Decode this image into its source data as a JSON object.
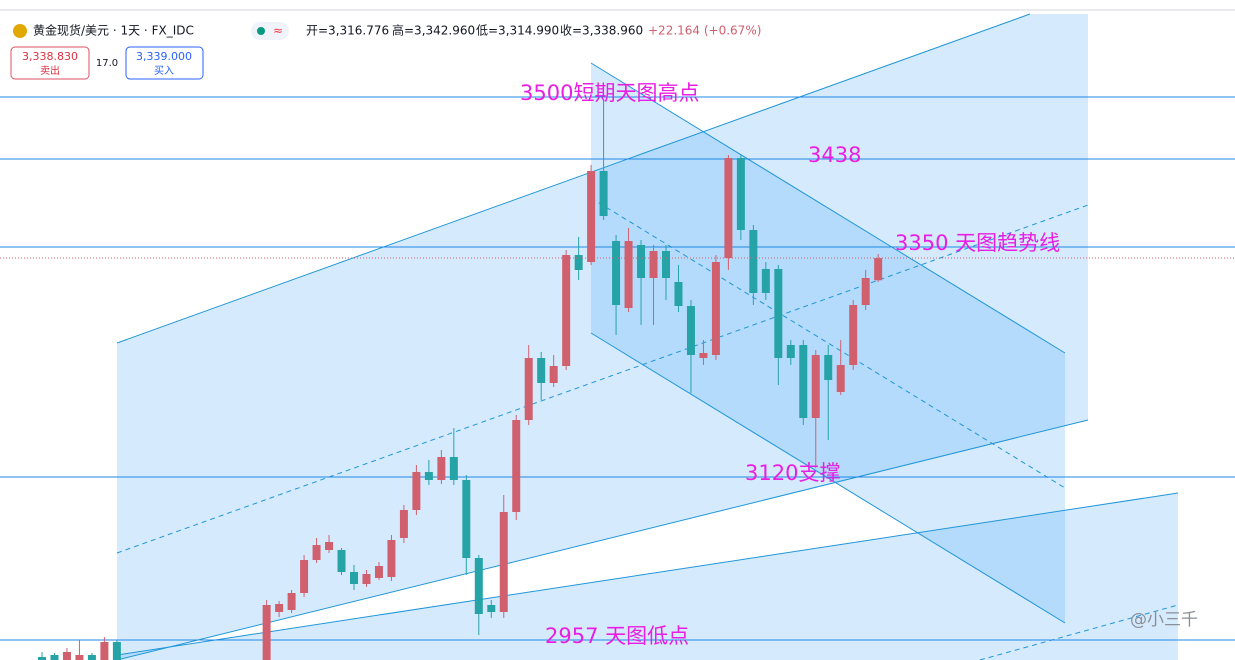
{
  "header": {
    "title": "黄金现货/美元 · 1天 · FX_IDC",
    "open": "开=3,316.776",
    "high": "高=3,342.960",
    "low": "低=3,314.990",
    "close": "收=3,338.960",
    "change": "+22.164 (+0.67%)",
    "sell_price": "3,338.830",
    "sell_label": "卖出",
    "spread": "17.0",
    "buy_price": "3,339.000",
    "buy_label": "买入",
    "watermark": "@小三千"
  },
  "chart_data": {
    "type": "candlestick",
    "ylim": [
      2937,
      3597
    ],
    "up_color": "#d0606e",
    "down_color": "#26a3a6",
    "level_color": "#1e88e5",
    "ohlc": [
      [
        2940,
        2945,
        2937,
        2937
      ],
      [
        2942,
        2944,
        2937,
        2937
      ],
      [
        2937,
        2949,
        2937,
        2945
      ],
      [
        2937,
        2957,
        2937,
        2942
      ],
      [
        2942,
        2944,
        2937,
        2937
      ],
      [
        2937,
        2960,
        2937,
        2955
      ],
      [
        2955,
        2957,
        2937,
        2937
      ],
      null,
      null,
      null,
      null,
      null,
      null,
      null,
      null,
      null,
      null,
      null,
      [
        2937,
        2997,
        2937,
        2992
      ],
      [
        2985,
        2996,
        2980,
        2993
      ],
      [
        2987,
        3007,
        2984,
        3004
      ],
      [
        3004,
        3042,
        3000,
        3037
      ],
      [
        3037,
        3059,
        3034,
        3052
      ],
      [
        3047,
        3062,
        3044,
        3055
      ],
      [
        3047,
        3049,
        3022,
        3025
      ],
      [
        3025,
        3032,
        3007,
        3013
      ],
      [
        3013,
        3027,
        3010,
        3023
      ],
      [
        3019,
        3035,
        3017,
        3031
      ],
      [
        3020,
        3062,
        3016,
        3057
      ],
      [
        3059,
        3092,
        3054,
        3087
      ],
      [
        3087,
        3132,
        3082,
        3125
      ],
      [
        3125,
        3137,
        3112,
        3117
      ],
      [
        3117,
        3147,
        3113,
        3140
      ],
      [
        3140,
        3169,
        3112,
        3117
      ],
      [
        3117,
        3122,
        3022,
        3039
      ],
      [
        3039,
        3042,
        2962,
        2983
      ],
      [
        2992,
        2997,
        2979,
        2985
      ],
      [
        2985,
        3102,
        2979,
        3085
      ],
      [
        3085,
        3182,
        3077,
        3177
      ],
      [
        3177,
        3252,
        3172,
        3239
      ],
      [
        3239,
        3245,
        3197,
        3214
      ],
      [
        3214,
        3242,
        3210,
        3231
      ],
      [
        3231,
        3347,
        3227,
        3342
      ],
      [
        3342,
        3360,
        3317,
        3327
      ],
      [
        3335,
        3432,
        3332,
        3426
      ],
      [
        3426,
        3497,
        3377,
        3381
      ],
      [
        3356,
        3362,
        3262,
        3292
      ],
      [
        3289,
        3369,
        3285,
        3356
      ],
      [
        3352,
        3357,
        3272,
        3319
      ],
      [
        3319,
        3352,
        3272,
        3346
      ],
      [
        3346,
        3352,
        3297,
        3319
      ],
      [
        3315,
        3332,
        3285,
        3291
      ],
      [
        3291,
        3297,
        3204,
        3242
      ],
      [
        3239,
        3257,
        3232,
        3244
      ],
      [
        3242,
        3342,
        3237,
        3335
      ],
      [
        3339,
        3442,
        3327,
        3439
      ],
      [
        3439,
        3442,
        3357,
        3367
      ],
      [
        3367,
        3372,
        3292,
        3304
      ],
      [
        3328,
        3335,
        3297,
        3304
      ],
      [
        3328,
        3332,
        3212,
        3239
      ],
      [
        3252,
        3257,
        3232,
        3239
      ],
      [
        3252,
        3257,
        3172,
        3179
      ],
      [
        3179,
        3247,
        3129,
        3242
      ],
      [
        3242,
        3252,
        3157,
        3217
      ],
      [
        3205,
        3257,
        3202,
        3232
      ],
      [
        3232,
        3297,
        3227,
        3292
      ],
      [
        3292,
        3327,
        3287,
        3319
      ],
      [
        3316.776,
        3342.96,
        3314.99,
        3338.96
      ]
    ],
    "levels": [
      {
        "value": 3500,
        "label": "3500短期天图高点"
      },
      {
        "value": 3438,
        "label": "3438"
      },
      {
        "value": 3350,
        "label": "3350 天图趋势线"
      },
      {
        "value": 3120,
        "label": "3120支撑"
      },
      {
        "value": 2957,
        "label": "2957 天图低点"
      }
    ]
  }
}
